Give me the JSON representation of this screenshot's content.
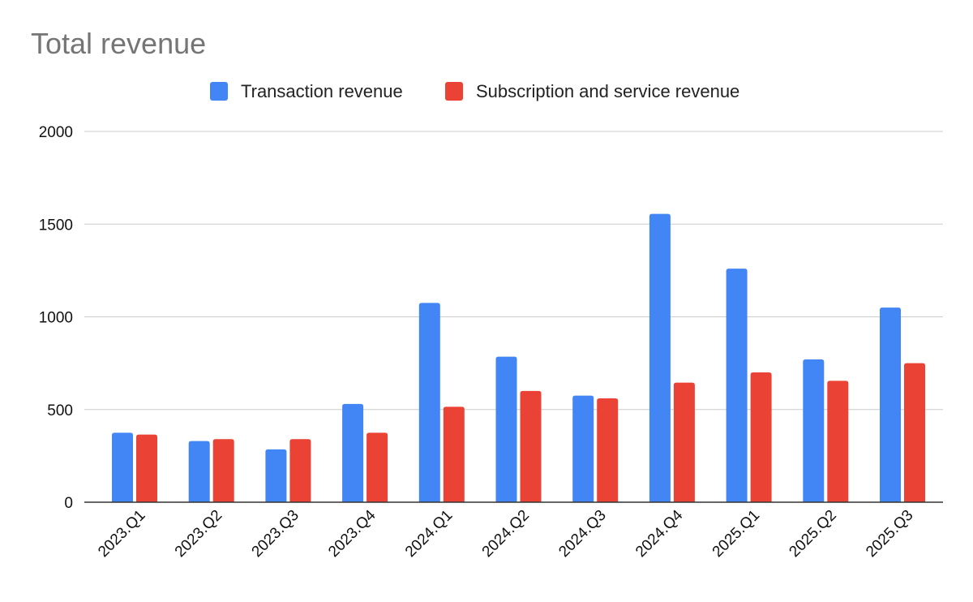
{
  "chart_data": {
    "type": "bar",
    "title": "Total revenue",
    "xlabel": "",
    "ylabel": "",
    "ylim": [
      0,
      2000
    ],
    "yticks": [
      0,
      500,
      1000,
      1500,
      2000
    ],
    "grid": true,
    "legend_position": "top-center",
    "categories": [
      "2023.Q1",
      "2023.Q2",
      "2023.Q3",
      "2023.Q4",
      "2024.Q1",
      "2024.Q2",
      "2024.Q3",
      "2024.Q4",
      "2025.Q1",
      "2025.Q2",
      "2025.Q3"
    ],
    "series": [
      {
        "name": "Transaction revenue",
        "color": "#4285F4",
        "values": [
          375,
          330,
          285,
          530,
          1075,
          785,
          575,
          1555,
          1260,
          770,
          1050
        ]
      },
      {
        "name": "Subscription and service revenue",
        "color": "#EA4335",
        "values": [
          365,
          340,
          340,
          375,
          515,
          600,
          560,
          645,
          700,
          655,
          750
        ]
      }
    ]
  }
}
